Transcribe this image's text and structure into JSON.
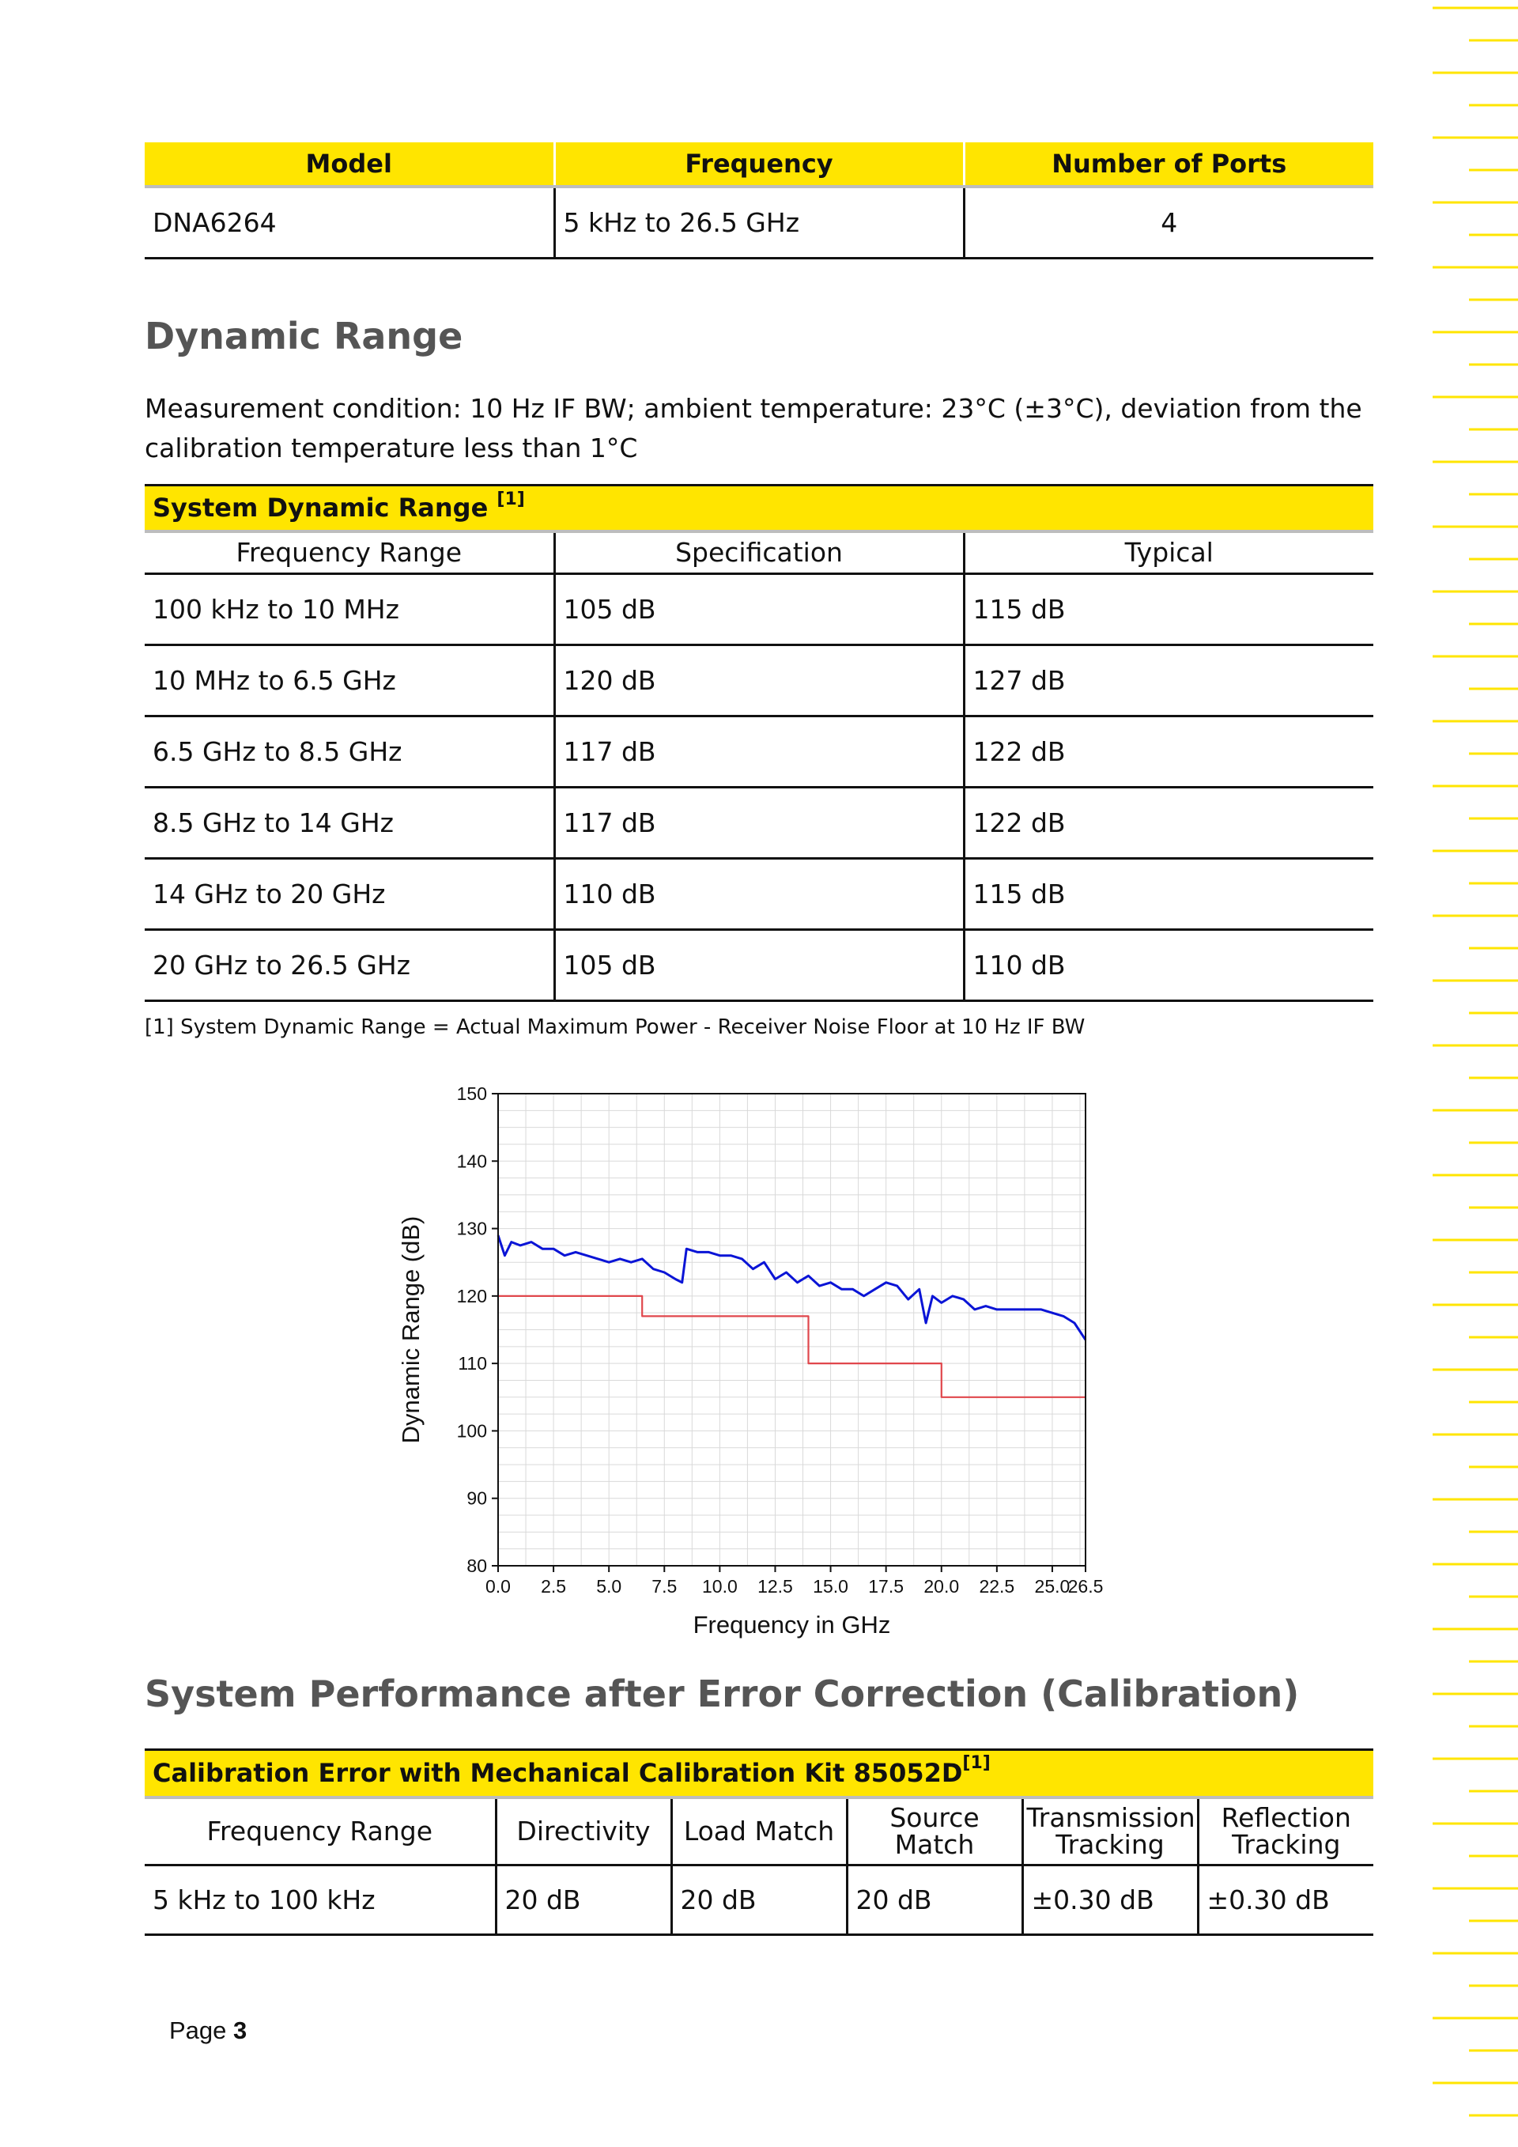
{
  "model_table": {
    "headers": [
      "Model",
      "Frequency",
      "Number of Ports"
    ],
    "row": [
      "DNA6264",
      "5 kHz to 26.5 GHz",
      "4"
    ]
  },
  "dynamic_range": {
    "title": "Dynamic Range",
    "condition": "Measurement condition: 10 Hz IF BW; ambient temperature: 23°C (±3°C), deviation from the calibration temperature less than 1°C",
    "table": {
      "caption": "System Dynamic Range",
      "caption_note": "[1]",
      "headers": [
        "Frequency Range",
        "Specification",
        "Typical"
      ],
      "rows": [
        [
          "100 kHz to 10 MHz",
          "105 dB",
          "115 dB"
        ],
        [
          "10 MHz to 6.5 GHz",
          "120 dB",
          "127 dB"
        ],
        [
          "6.5 GHz to 8.5 GHz",
          "117 dB",
          "122 dB"
        ],
        [
          "8.5 GHz to 14 GHz",
          "117 dB",
          "122 dB"
        ],
        [
          "14 GHz to 20 GHz",
          "110 dB",
          "115 dB"
        ],
        [
          "20 GHz to 26.5 GHz",
          "105 dB",
          "110 dB"
        ]
      ]
    },
    "footnote": "[1] System Dynamic Range = Actual Maximum Power - Receiver Noise Floor at 10 Hz IF BW"
  },
  "chart_data": {
    "type": "line",
    "title": "",
    "xlabel": "Frequency in GHz",
    "ylabel": "Dynamic Range (dB)",
    "xlim": [
      0,
      26.5
    ],
    "ylim": [
      80,
      150
    ],
    "xticks": [
      "0.0",
      "2.5",
      "5.0",
      "7.5",
      "10.0",
      "12.5",
      "15.0",
      "17.5",
      "20.0",
      "22.5",
      "25.0",
      "26.5"
    ],
    "yticks": [
      "80",
      "90",
      "100",
      "110",
      "120",
      "130",
      "140",
      "150"
    ],
    "grid": true,
    "series": [
      {
        "color": "#0a14d6",
        "x": [
          0,
          0.3,
          0.6,
          1,
          1.5,
          2,
          2.5,
          3,
          3.5,
          4,
          4.5,
          5,
          5.5,
          6,
          6.5,
          7,
          7.5,
          8,
          8.3,
          8.5,
          9,
          9.5,
          10,
          10.5,
          11,
          11.5,
          12,
          12.5,
          13,
          13.5,
          14,
          14.5,
          15,
          15.5,
          16,
          16.5,
          17,
          17.5,
          18,
          18.5,
          19,
          19.3,
          19.6,
          20,
          20.5,
          21,
          21.5,
          22,
          22.5,
          23,
          23.5,
          24,
          24.5,
          25,
          25.5,
          26,
          26.5
        ],
        "y": [
          129,
          126,
          128,
          127.5,
          128,
          127,
          127,
          126,
          126.5,
          126,
          125.5,
          125,
          125.5,
          125,
          125.5,
          124,
          123.5,
          122.5,
          122,
          127,
          126.5,
          126.5,
          126,
          126,
          125.5,
          124,
          125,
          122.5,
          123.5,
          122,
          123,
          121.5,
          122,
          121,
          121,
          120,
          121,
          122,
          121.5,
          119.5,
          121,
          116,
          120,
          119,
          120,
          119.5,
          118,
          118.5,
          118,
          118,
          118,
          118,
          118,
          117.5,
          117,
          116,
          113.5
        ]
      },
      {
        "color": "#e0474c",
        "x": [
          0,
          6.5,
          6.5,
          14,
          14,
          20,
          20,
          26.5
        ],
        "y": [
          120,
          120,
          117,
          117,
          110,
          110,
          105,
          105
        ]
      }
    ]
  },
  "performance": {
    "title": "System Performance after Error Correction (Calibration)",
    "table": {
      "caption": "Calibration Error with Mechanical Calibration Kit 85052D",
      "caption_note": "[1]",
      "headers": [
        "Frequency Range",
        "Directivity",
        "Load Match",
        "Source Match",
        "Transmission Tracking",
        "Reflection Tracking"
      ],
      "row": [
        "5 kHz to 100 kHz",
        "20 dB",
        "20 dB",
        "20 dB",
        "±0.30 dB",
        "±0.30 dB"
      ]
    }
  },
  "page": {
    "label": "Page",
    "number": "3"
  },
  "colors": {
    "accent_yellow": "#ffe500",
    "typical_curve": "#0a14d6",
    "spec_curve": "#e0474c"
  }
}
